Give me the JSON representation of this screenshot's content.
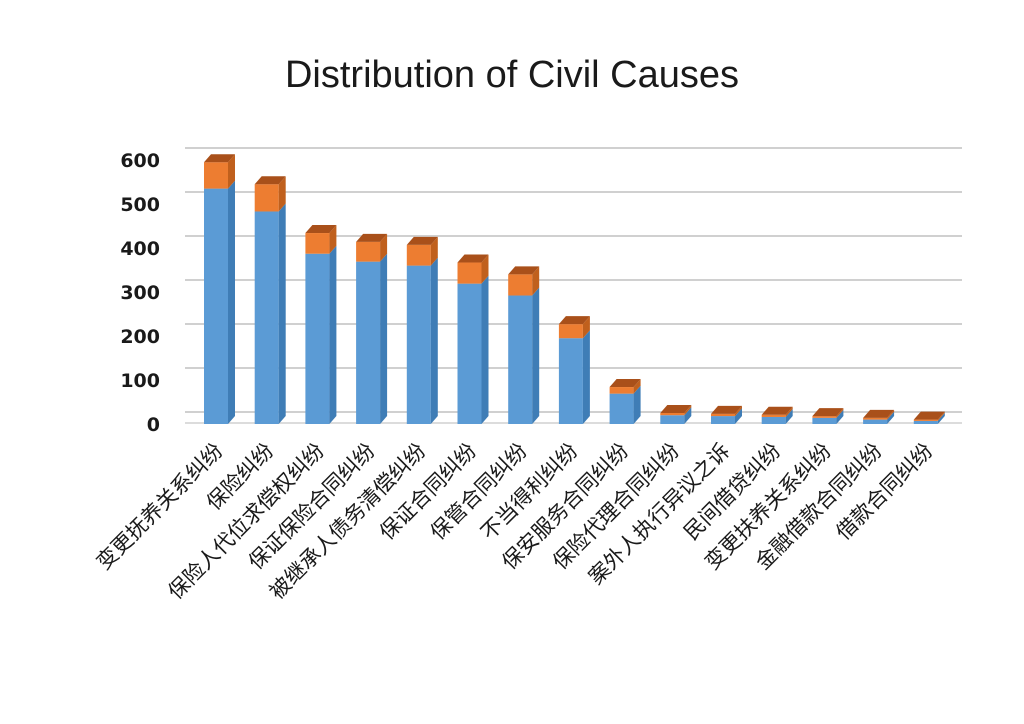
{
  "chart_data": {
    "type": "bar",
    "stacked": true,
    "three_d": true,
    "title": "Distribution of Civil Causes",
    "xlabel": "",
    "ylabel": "",
    "ylim": [
      0,
      600
    ],
    "yticks": [
      "0",
      "100",
      "200",
      "300",
      "400",
      "500",
      "600"
    ],
    "grid": true,
    "legend": "none",
    "categories": [
      "变更抚养关系纠纷",
      "保险纠纷",
      "保险人代位求偿权纠纷",
      "保证保险合同纠纷",
      "被继承人债务清偿纠纷",
      "保证合同纠纷",
      "保管合同纠纷",
      "不当得利纠纷",
      "保安服务合同纠纷",
      "保险代理合同纠纷",
      "案外人执行异议之诉",
      "民间借贷纠纷",
      "变更扶养关系纠纷",
      "金融借款合同纠纷",
      "借款合同纠纷"
    ],
    "series": [
      {
        "values": [
          535,
          483,
          387,
          369,
          360,
          319,
          292,
          195,
          69,
          20,
          18,
          16,
          14,
          10,
          7
        ]
      },
      {
        "values": [
          60,
          62,
          47,
          45,
          47,
          48,
          48,
          32,
          15,
          5,
          5,
          5,
          4,
          4,
          3
        ]
      }
    ],
    "colors": {
      "front": [
        "#5b9bd5",
        "#ed7d31"
      ],
      "side": [
        "#3f7db6",
        "#c0601d"
      ],
      "top": [
        "#4f8cc4",
        "#a9501a"
      ]
    }
  }
}
